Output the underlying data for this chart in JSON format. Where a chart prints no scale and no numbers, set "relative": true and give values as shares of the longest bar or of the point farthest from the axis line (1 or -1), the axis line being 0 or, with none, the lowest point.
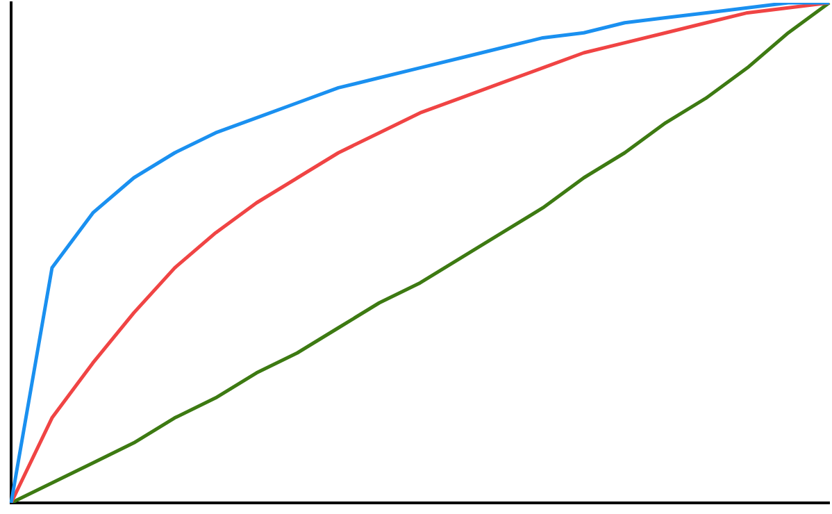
{
  "chart_data": {
    "type": "line",
    "relative": true,
    "categories": [
      null,
      null,
      null,
      null,
      null,
      null,
      null,
      null,
      null,
      null,
      null,
      null,
      null,
      null,
      null,
      null,
      null,
      null,
      null,
      null,
      null
    ],
    "series": [
      {
        "color": "#1a90f0",
        "values": [
          0,
          0.47,
          0.58,
          0.65,
          0.7,
          0.74,
          0.77,
          0.8,
          0.83,
          0.85,
          0.87,
          0.89,
          0.91,
          0.93,
          0.94,
          0.96,
          0.97,
          0.98,
          0.99,
          1,
          1
        ]
      },
      {
        "color": "#f04444",
        "values": [
          0,
          0.17,
          0.28,
          0.38,
          0.47,
          0.54,
          0.6,
          0.65,
          0.7,
          0.74,
          0.78,
          0.81,
          0.84,
          0.87,
          0.9,
          0.92,
          0.94,
          0.96,
          0.98,
          0.99,
          1
        ]
      },
      {
        "color": "#3d7a12",
        "values": [
          0,
          0.04,
          0.08,
          0.12,
          0.17,
          0.21,
          0.26,
          0.3,
          0.35,
          0.4,
          0.44,
          0.49,
          0.54,
          0.59,
          0.65,
          0.7,
          0.76,
          0.81,
          0.87,
          0.94,
          1
        ]
      }
    ]
  }
}
